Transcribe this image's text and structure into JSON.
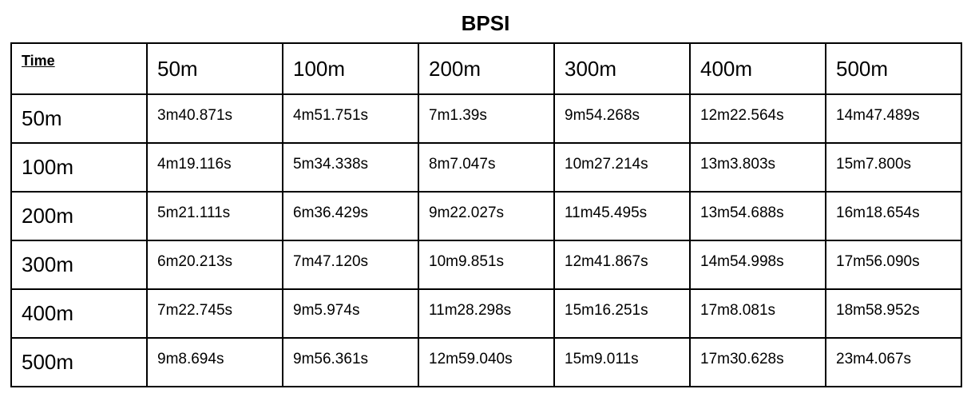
{
  "title": "BPSI",
  "table": {
    "corner_label": "Time",
    "columns": [
      "50m",
      "100m",
      "200m",
      "300m",
      "400m",
      "500m"
    ],
    "rows": [
      {
        "label": "50m",
        "cells": [
          "3m40.871s",
          "4m51.751s",
          "7m1.39s",
          "9m54.268s",
          "12m22.564s",
          "14m47.489s"
        ]
      },
      {
        "label": "100m",
        "cells": [
          "4m19.116s",
          "5m34.338s",
          "8m7.047s",
          "10m27.214s",
          "13m3.803s",
          "15m7.800s"
        ]
      },
      {
        "label": "200m",
        "cells": [
          "5m21.111s",
          "6m36.429s",
          "9m22.027s",
          "11m45.495s",
          "13m54.688s",
          "16m18.654s"
        ]
      },
      {
        "label": "300m",
        "cells": [
          "6m20.213s",
          "7m47.120s",
          "10m9.851s",
          "12m41.867s",
          "14m54.998s",
          "17m56.090s"
        ]
      },
      {
        "label": "400m",
        "cells": [
          "7m22.745s",
          "9m5.974s",
          "11m28.298s",
          "15m16.251s",
          "17m8.081s",
          "18m58.952s"
        ]
      },
      {
        "label": "500m",
        "cells": [
          "9m8.694s",
          "9m56.361s",
          "12m59.040s",
          "15m9.011s",
          "17m30.628s",
          "23m4.067s"
        ]
      }
    ]
  }
}
